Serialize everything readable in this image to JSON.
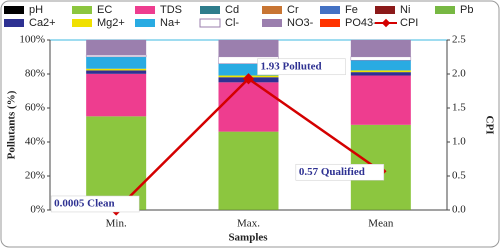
{
  "chart_data": {
    "type": "bar",
    "stacked": true,
    "categories": [
      "Min.",
      "Max.",
      "Mean"
    ],
    "x_label": "Samples",
    "y_label": "Pollutants (%)",
    "y2_label": "CPI",
    "ylim": [
      0,
      100
    ],
    "yticks": [
      {
        "value": 0,
        "label": "0%"
      },
      {
        "value": 20,
        "label": "20%"
      },
      {
        "value": 40,
        "label": "40%"
      },
      {
        "value": 60,
        "label": "60%"
      },
      {
        "value": 80,
        "label": "80%"
      },
      {
        "value": 100,
        "label": "100%"
      }
    ],
    "y2lim": [
      0,
      2.5
    ],
    "y2ticks": [
      {
        "value": 0,
        "label": "0.0"
      },
      0.5,
      {
        "value": 1,
        "label": "1.0"
      },
      1.5,
      {
        "value": 2,
        "label": "2.0"
      },
      2.5
    ],
    "series": [
      {
        "name": "pH",
        "color": "#000000",
        "values": [
          0.1,
          0.1,
          0.1
        ]
      },
      {
        "name": "EC",
        "color": "#8cc63f",
        "values": [
          55,
          46,
          50
        ]
      },
      {
        "name": "TDS",
        "color": "#ee3d8f",
        "values": [
          25,
          29,
          29
        ]
      },
      {
        "name": "Cd",
        "color": "#2e7d8c",
        "values": [
          0,
          0,
          0
        ]
      },
      {
        "name": "Cr",
        "color": "#c87533",
        "values": [
          0,
          0,
          0
        ]
      },
      {
        "name": "Fe",
        "color": "#4472c4",
        "values": [
          0,
          0,
          0
        ]
      },
      {
        "name": "Ni",
        "color": "#8b1a1a",
        "values": [
          0,
          0,
          0
        ]
      },
      {
        "name": "Pb",
        "color": "#77b843",
        "values": [
          0,
          0,
          0
        ]
      },
      {
        "name": "Ca2+",
        "color": "#2e3192",
        "values": [
          2,
          3,
          2
        ]
      },
      {
        "name": "Mg2+",
        "color": "#f0e000",
        "values": [
          1,
          1,
          1
        ]
      },
      {
        "name": "Na+",
        "color": "#29abe2",
        "values": [
          7,
          7,
          6
        ]
      },
      {
        "name": "Cl-",
        "color": "#ffffff",
        "values": [
          1,
          4,
          2
        ]
      },
      {
        "name": "NO3-",
        "color": "#9b7fae",
        "values": [
          9,
          10,
          10
        ]
      },
      {
        "name": "PO43-",
        "color": "#ff3300",
        "values": [
          0,
          0,
          0
        ]
      },
      {
        "name": "CPI",
        "color": "#d40000",
        "type": "line",
        "axis": "y2",
        "values": [
          0.0005,
          1.93,
          0.57
        ],
        "value_labels": [
          "0.0005 Clean",
          "1.93 Polluted",
          "0.57 Qualified"
        ]
      }
    ]
  }
}
